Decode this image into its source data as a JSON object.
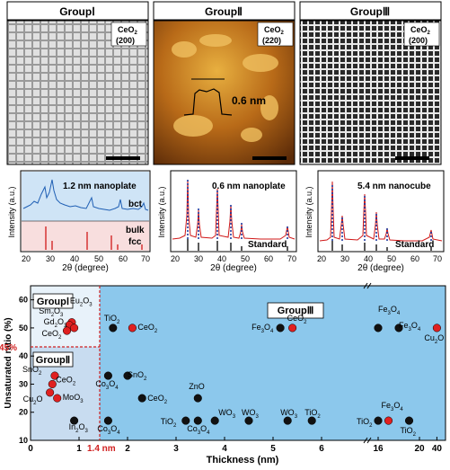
{
  "panels": [
    {
      "title": "GroupⅠ",
      "label_line1": "CeO",
      "label_sub": "2",
      "label_line2": "(200)"
    },
    {
      "title": "GroupⅡ",
      "label_line1": "CeO",
      "label_sub": "2",
      "label_line2": "(220)",
      "annotation": "0.6 nm"
    },
    {
      "title": "GroupⅢ",
      "label_line1": "CeO",
      "label_sub": "2",
      "label_line2": "(200)"
    }
  ],
  "xrd": [
    {
      "top_label": "1.2 nm nanoplate",
      "top_tag": "bct",
      "bottom_tag1": "bulk",
      "bottom_tag2": "fcc",
      "xlabel": "2θ (degree)",
      "ylabel": "Intensity (a.u.)",
      "ticks": [
        "20",
        "30",
        "40",
        "50",
        "60",
        "70"
      ]
    },
    {
      "top_label": "0.6 nm nanoplate",
      "standard": "Standard",
      "xlabel": "2θ (degree)",
      "ylabel": "Intensity (a.u.)",
      "ticks": [
        "20",
        "30",
        "40",
        "50",
        "60",
        "70"
      ]
    },
    {
      "top_label": "5.4 nm nanocube",
      "standard": "Standard",
      "xlabel": "2θ (degree)",
      "ylabel": "Intensity (a.u.)",
      "ticks": [
        "20",
        "30",
        "40",
        "50",
        "60",
        "70"
      ]
    }
  ],
  "chart_data": {
    "type": "scatter",
    "xlabel": "Thickness (nm)",
    "ylabel": "Unsaturated ratio (%)",
    "x_ticks": [
      "0",
      "1",
      "2",
      "3",
      "4",
      "5",
      "6",
      "16",
      "20",
      "40"
    ],
    "y_ticks": [
      "10",
      "20",
      "30",
      "40",
      "50",
      "60"
    ],
    "ylim": [
      10,
      65
    ],
    "threshold_y_label": "45%",
    "threshold_x_label": "1.4 nm",
    "groups": [
      "GroupⅠ",
      "GroupⅡ",
      "GroupⅢ"
    ],
    "points": [
      {
        "label": "Eu2O3",
        "x": 0.85,
        "y": 52,
        "color": "#e02020"
      },
      {
        "label": "Sm2O3",
        "x": 0.8,
        "y": 51,
        "color": "#e02020"
      },
      {
        "label": "Gd2O3",
        "x": 0.9,
        "y": 50,
        "color": "#e02020"
      },
      {
        "label": "CeO2",
        "x": 0.75,
        "y": 49,
        "color": "#e02020"
      },
      {
        "label": "SnO2",
        "x": 0.5,
        "y": 33,
        "color": "#e02020"
      },
      {
        "label": "CeO2",
        "x": 0.45,
        "y": 30,
        "color": "#e02020"
      },
      {
        "label": "Cu2O",
        "x": 0.4,
        "y": 27,
        "color": "#e02020"
      },
      {
        "label": "MoO3",
        "x": 0.55,
        "y": 25,
        "color": "#e02020"
      },
      {
        "label": "In2O3",
        "x": 0.9,
        "y": 17,
        "color": "#111111"
      },
      {
        "label": "TiO2",
        "x": 1.7,
        "y": 50,
        "color": "#111111"
      },
      {
        "label": "CeO2",
        "x": 2.1,
        "y": 50,
        "color": "#e02020"
      },
      {
        "label": "Co3O4",
        "x": 1.6,
        "y": 33,
        "color": "#111111"
      },
      {
        "label": "SnO2",
        "x": 2.0,
        "y": 33,
        "color": "#111111"
      },
      {
        "label": "CeO2",
        "x": 2.3,
        "y": 25,
        "color": "#111111"
      },
      {
        "label": "Co3O4",
        "x": 1.6,
        "y": 17,
        "color": "#111111"
      },
      {
        "label": "ZnO",
        "x": 3.45,
        "y": 25,
        "color": "#111111"
      },
      {
        "label": "TiO2",
        "x": 3.2,
        "y": 17,
        "color": "#111111"
      },
      {
        "label": "Co3O4",
        "x": 3.45,
        "y": 17,
        "color": "#111111"
      },
      {
        "label": "WO3",
        "x": 3.8,
        "y": 17,
        "color": "#111111"
      },
      {
        "label": "WO3",
        "x": 4.5,
        "y": 17,
        "color": "#111111"
      },
      {
        "label": "WO3",
        "x": 5.3,
        "y": 17,
        "color": "#111111"
      },
      {
        "label": "TiO2",
        "x": 5.8,
        "y": 17,
        "color": "#111111"
      },
      {
        "label": "Fe3O4",
        "x": 5.15,
        "y": 50,
        "color": "#111111"
      },
      {
        "label": "CeO2",
        "x": 5.4,
        "y": 50,
        "color": "#e02020"
      },
      {
        "label": "Fe3O4",
        "x": 16,
        "y": 50,
        "color": "#111111"
      },
      {
        "label": "Fe3O4",
        "x": 18,
        "y": 50,
        "color": "#111111"
      },
      {
        "label": "Cu2O",
        "x": 40,
        "y": 50,
        "color": "#e02020"
      },
      {
        "label": "TiO2",
        "x": 16,
        "y": 17,
        "color": "#111111"
      },
      {
        "label": "Fe3O4",
        "x": 17,
        "y": 17,
        "color": "#e02020"
      },
      {
        "label": "TiO2",
        "x": 19,
        "y": 17,
        "color": "#111111"
      }
    ]
  },
  "colors": {
    "group1": "#e8f2fa",
    "group2": "#c8dcf0",
    "group3": "#8cc8ec",
    "threshold": "#d02020",
    "blue_trace": "#1f5fb4",
    "red_trace": "#d01818"
  }
}
